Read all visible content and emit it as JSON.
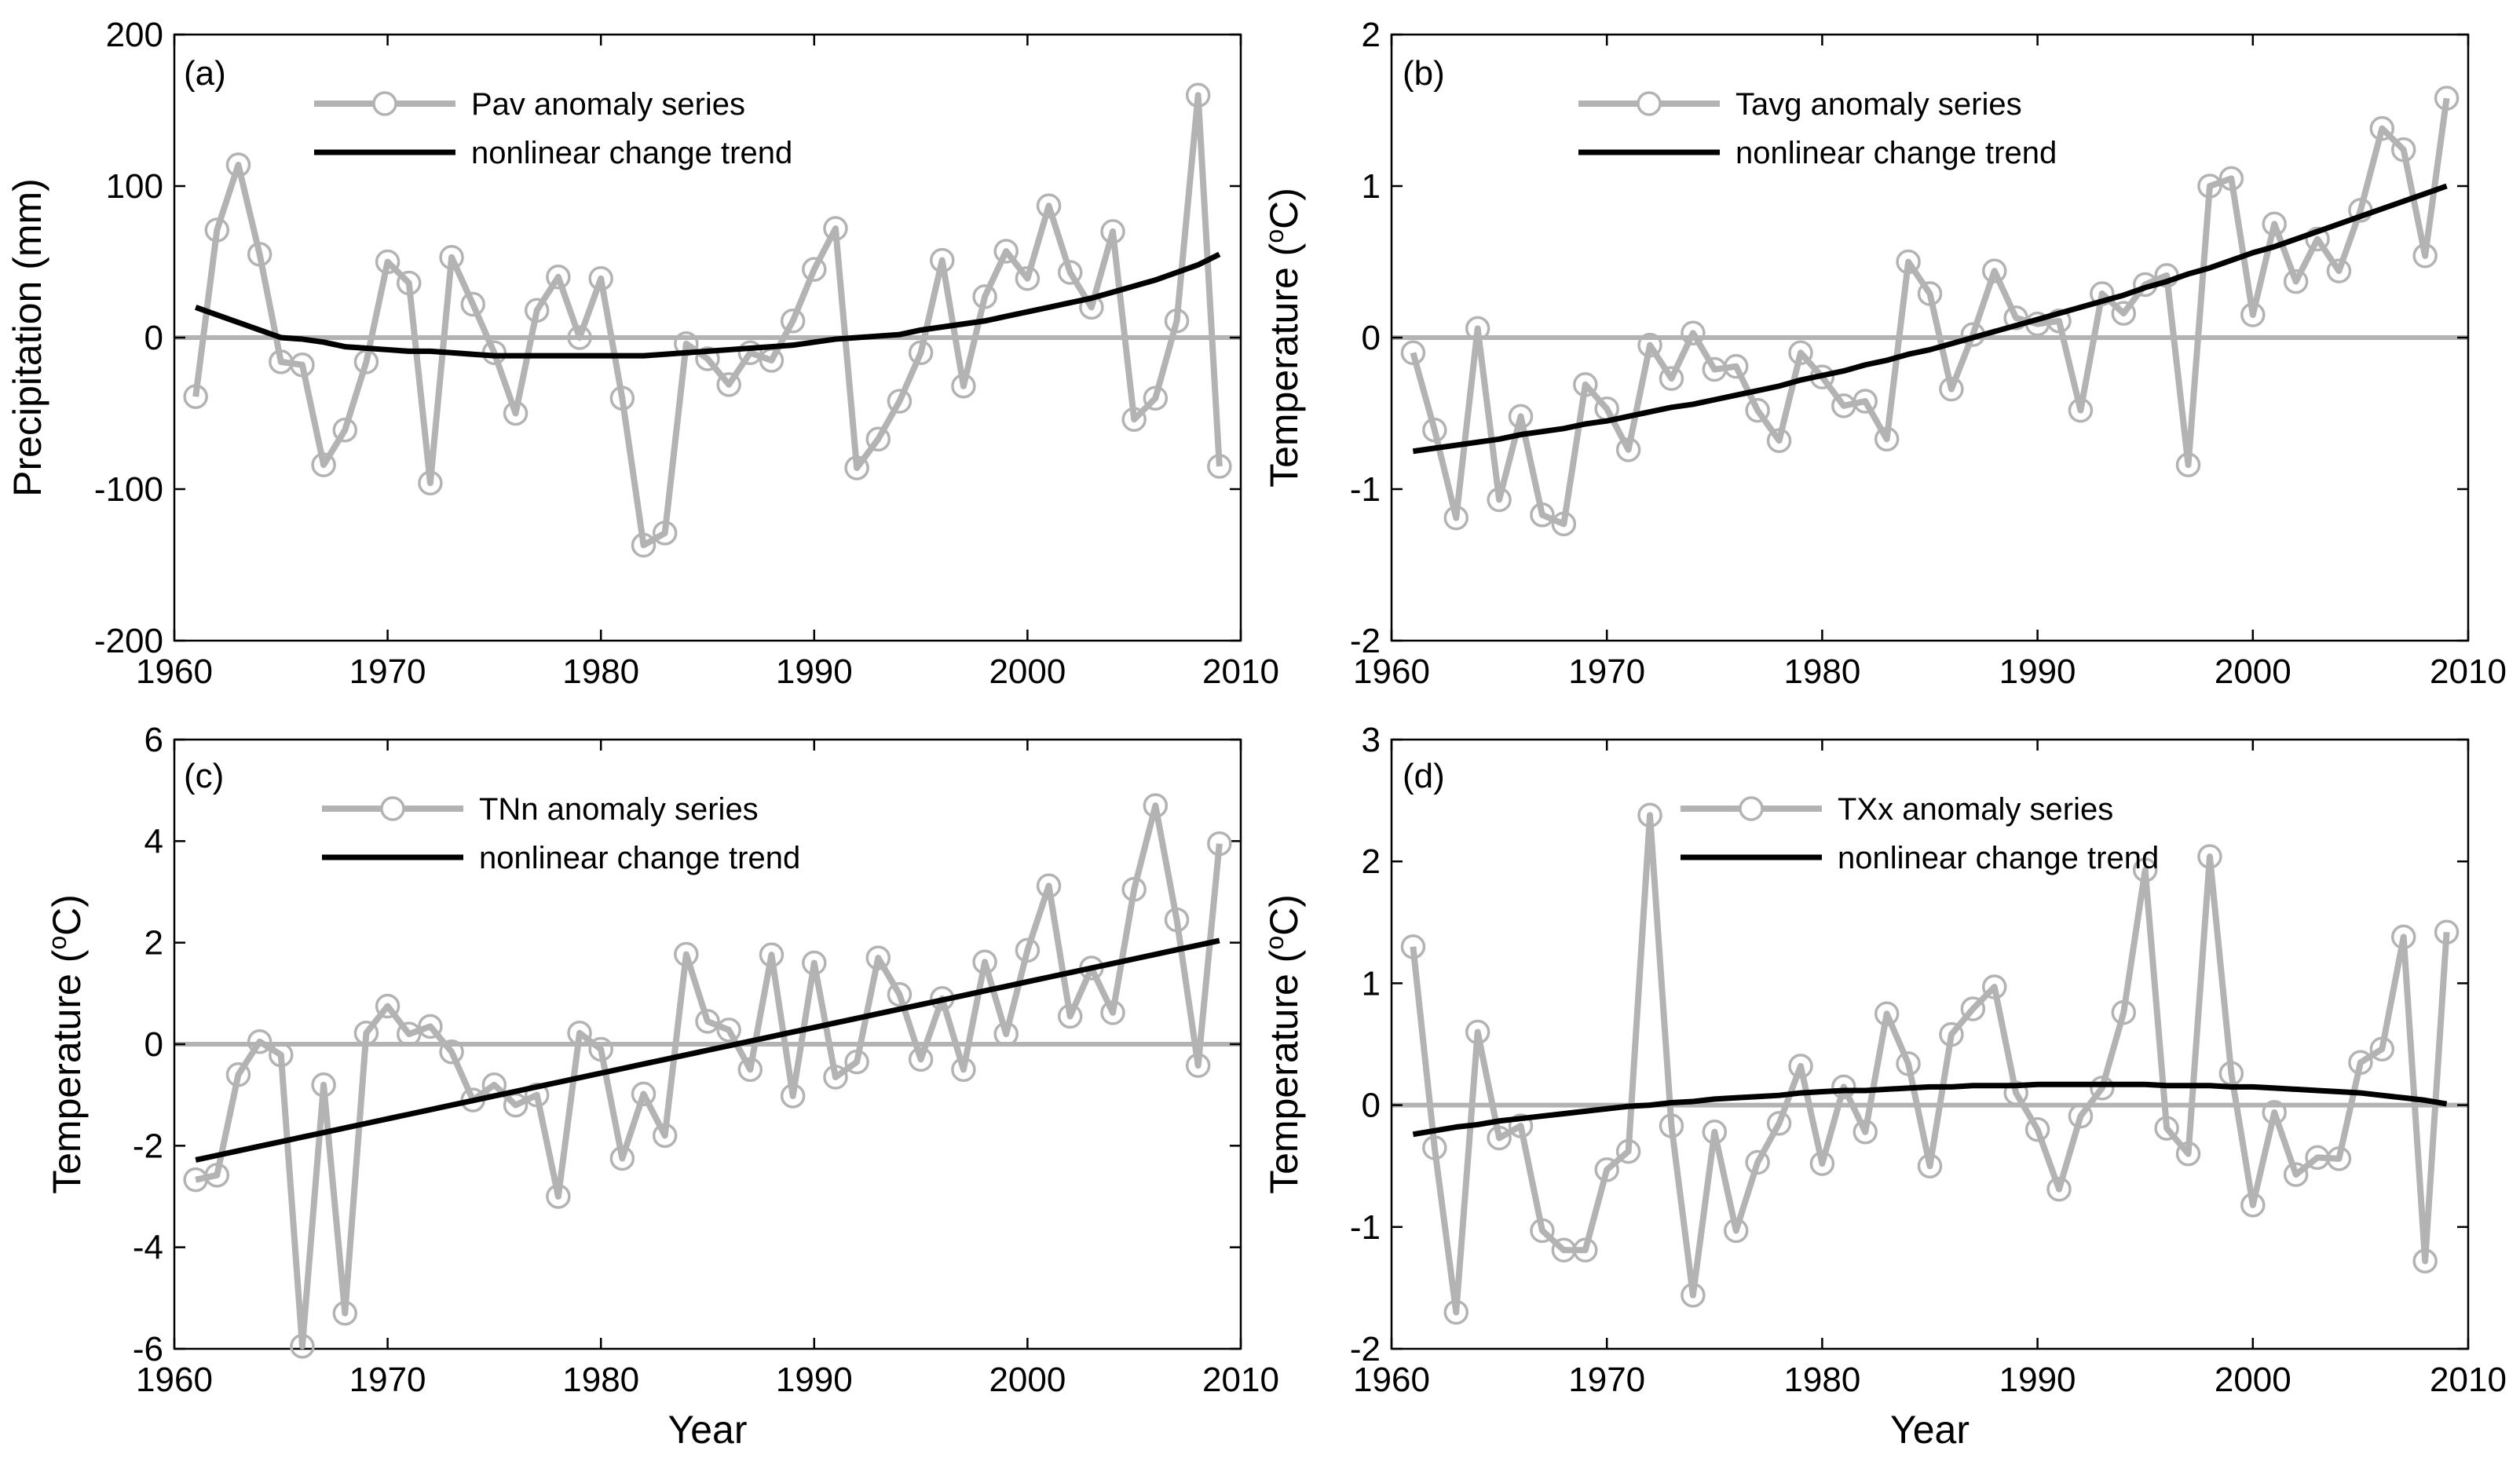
{
  "colors": {
    "series": "#b3b3b3",
    "trend": "#000000",
    "zero": "#b3b3b3",
    "axis": "#000000"
  },
  "chart_data": [
    {
      "panel": "(a)",
      "type": "line",
      "xlabel": "",
      "ylabel": "Precipitation (mm)",
      "xlim": [
        1960,
        2010
      ],
      "ylim": [
        -200,
        200
      ],
      "xticks": [
        "1960",
        "1970",
        "1980",
        "1990",
        "2000",
        "2010"
      ],
      "yticks": [
        "200",
        "100",
        "0",
        "-100",
        "-200"
      ],
      "ytick_values": [
        200,
        100,
        0,
        -100,
        -200
      ],
      "x": [
        1961,
        1962,
        1963,
        1964,
        1965,
        1966,
        1967,
        1968,
        1969,
        1970,
        1971,
        1972,
        1973,
        1974,
        1975,
        1976,
        1977,
        1978,
        1979,
        1980,
        1981,
        1982,
        1983,
        1984,
        1985,
        1986,
        1987,
        1988,
        1989,
        1990,
        1991,
        1992,
        1993,
        1994,
        1995,
        1996,
        1997,
        1998,
        1999,
        2000,
        2001,
        2002,
        2003,
        2004,
        2005,
        2006,
        2007,
        2008,
        2009
      ],
      "series": [
        {
          "name": "Pav anomaly series",
          "values": [
            -39,
            71,
            114,
            55,
            -16,
            -18,
            -84,
            -61,
            -16,
            50,
            36,
            -96,
            53,
            22,
            -10,
            -50,
            18,
            40,
            0,
            39,
            -40,
            -137,
            -129,
            -4,
            -14,
            -31,
            -10,
            -15,
            11,
            45,
            72,
            -86,
            -67,
            -42,
            -10,
            51,
            -32,
            27,
            57,
            39,
            87,
            43,
            20,
            70,
            -54,
            -40,
            11,
            160,
            -85
          ]
        },
        {
          "name": "nonlinear change trend",
          "values": [
            20,
            15,
            10,
            5,
            0,
            -1,
            -3,
            -6,
            -7,
            -8,
            -9,
            -9,
            -10,
            -11,
            -12,
            -12,
            -12,
            -12,
            -12,
            -12,
            -12,
            -12,
            -11,
            -10,
            -9,
            -8,
            -7,
            -6,
            -5,
            -3,
            -1,
            0,
            1,
            2,
            5,
            7,
            9,
            11,
            14,
            17,
            20,
            23,
            26,
            30,
            34,
            38,
            43,
            48,
            55
          ]
        }
      ],
      "legend": [
        "Pav anomaly series",
        "nonlinear change trend"
      ]
    },
    {
      "panel": "(b)",
      "type": "line",
      "xlabel": "",
      "ylabel_main": "Temperature (",
      "ylabel_sup": "o",
      "ylabel_end": "C)",
      "xlim": [
        1960,
        2010
      ],
      "ylim": [
        -2,
        2
      ],
      "xticks": [
        "1960",
        "1970",
        "1980",
        "1990",
        "2000",
        "2010"
      ],
      "yticks": [
        "2",
        "1",
        "0",
        "-1",
        "-2"
      ],
      "ytick_values": [
        2,
        1,
        0,
        -1,
        -2
      ],
      "x": [
        1961,
        1962,
        1963,
        1964,
        1965,
        1966,
        1967,
        1968,
        1969,
        1970,
        1971,
        1972,
        1973,
        1974,
        1975,
        1976,
        1977,
        1978,
        1979,
        1980,
        1981,
        1982,
        1983,
        1984,
        1985,
        1986,
        1987,
        1988,
        1989,
        1990,
        1991,
        1992,
        1993,
        1994,
        1995,
        1996,
        1997,
        1998,
        1999,
        2000,
        2001,
        2002,
        2003,
        2004,
        2005,
        2006,
        2007,
        2008,
        2009
      ],
      "series": [
        {
          "name": "Tavg anomaly series",
          "values": [
            -0.1,
            -0.61,
            -1.19,
            0.06,
            -1.07,
            -0.52,
            -1.17,
            -1.23,
            -0.31,
            -0.47,
            -0.74,
            -0.05,
            -0.27,
            0.03,
            -0.21,
            -0.19,
            -0.48,
            -0.68,
            -0.1,
            -0.26,
            -0.45,
            -0.42,
            -0.67,
            0.5,
            0.29,
            -0.34,
            0.02,
            0.44,
            0.13,
            0.09,
            0.11,
            -0.48,
            0.29,
            0.16,
            0.35,
            0.41,
            -0.84,
            1.0,
            1.05,
            0.15,
            0.75,
            0.37,
            0.65,
            0.44,
            0.84,
            1.38,
            1.24,
            0.54,
            1.58
          ]
        },
        {
          "name": "nonlinear change trend",
          "values": [
            -0.75,
            -0.73,
            -0.71,
            -0.69,
            -0.67,
            -0.64,
            -0.62,
            -0.6,
            -0.57,
            -0.55,
            -0.52,
            -0.49,
            -0.46,
            -0.44,
            -0.41,
            -0.38,
            -0.35,
            -0.32,
            -0.28,
            -0.25,
            -0.22,
            -0.18,
            -0.15,
            -0.11,
            -0.08,
            -0.04,
            0.0,
            0.04,
            0.08,
            0.12,
            0.16,
            0.2,
            0.24,
            0.28,
            0.33,
            0.37,
            0.42,
            0.46,
            0.51,
            0.56,
            0.6,
            0.65,
            0.7,
            0.75,
            0.8,
            0.85,
            0.9,
            0.95,
            1.0
          ]
        }
      ],
      "legend": [
        "Tavg anomaly series",
        "nonlinear change trend"
      ]
    },
    {
      "panel": "(c)",
      "type": "line",
      "xlabel": "Year",
      "ylabel_main": "Temperature (",
      "ylabel_sup": "o",
      "ylabel_end": "C)",
      "xlim": [
        1960,
        2010
      ],
      "ylim": [
        -6,
        6
      ],
      "xticks": [
        "1960",
        "1970",
        "1980",
        "1990",
        "2000",
        "2010"
      ],
      "yticks": [
        "6",
        "4",
        "2",
        "0",
        "-2",
        "-4",
        "-6"
      ],
      "ytick_values": [
        6,
        4,
        2,
        0,
        -2,
        -4,
        -6
      ],
      "x": [
        1961,
        1962,
        1963,
        1964,
        1965,
        1966,
        1967,
        1968,
        1969,
        1970,
        1971,
        1972,
        1973,
        1974,
        1975,
        1976,
        1977,
        1978,
        1979,
        1980,
        1981,
        1982,
        1983,
        1984,
        1985,
        1986,
        1987,
        1988,
        1989,
        1990,
        1991,
        1992,
        1993,
        1994,
        1995,
        1996,
        1997,
        1998,
        1999,
        2000,
        2001,
        2002,
        2003,
        2004,
        2005,
        2006,
        2007,
        2008,
        2009
      ],
      "series": [
        {
          "name": "TNn anomaly series",
          "values": [
            -2.67,
            -2.58,
            -0.6,
            0.05,
            -0.21,
            -5.95,
            -0.8,
            -5.3,
            0.22,
            0.75,
            0.2,
            0.35,
            -0.15,
            -1.1,
            -0.8,
            -1.2,
            -1.0,
            -3.0,
            0.22,
            -0.1,
            -2.25,
            -0.98,
            -1.8,
            1.77,
            0.45,
            0.28,
            -0.5,
            1.76,
            -1.02,
            1.6,
            -0.65,
            -0.35,
            1.7,
            0.98,
            -0.3,
            0.9,
            -0.5,
            1.62,
            0.2,
            1.85,
            3.12,
            0.55,
            1.5,
            0.62,
            3.05,
            4.7,
            2.45,
            -0.42,
            3.95
          ]
        },
        {
          "name": "nonlinear change trend",
          "values": [
            -2.28,
            -2.19,
            -2.1,
            -2.01,
            -1.92,
            -1.83,
            -1.74,
            -1.65,
            -1.56,
            -1.47,
            -1.38,
            -1.29,
            -1.2,
            -1.11,
            -1.02,
            -0.93,
            -0.84,
            -0.75,
            -0.66,
            -0.57,
            -0.48,
            -0.39,
            -0.3,
            -0.21,
            -0.12,
            -0.03,
            0.06,
            0.15,
            0.24,
            0.33,
            0.42,
            0.51,
            0.6,
            0.69,
            0.78,
            0.87,
            0.96,
            1.05,
            1.14,
            1.23,
            1.32,
            1.41,
            1.5,
            1.59,
            1.68,
            1.77,
            1.86,
            1.95,
            2.04
          ]
        }
      ],
      "legend": [
        "TNn anomaly series",
        "nonlinear change trend"
      ]
    },
    {
      "panel": "(d)",
      "type": "line",
      "xlabel": "Year",
      "ylabel_main": "Temperature (",
      "ylabel_sup": "o",
      "ylabel_end": "C)",
      "xlim": [
        1960,
        2010
      ],
      "ylim": [
        -2,
        3
      ],
      "xticks": [
        "1960",
        "1970",
        "1980",
        "1990",
        "2000",
        "2010"
      ],
      "yticks": [
        "3",
        "2",
        "1",
        "0",
        "-1",
        "-2"
      ],
      "ytick_values": [
        3,
        2,
        1,
        0,
        -1,
        -2
      ],
      "x": [
        1961,
        1962,
        1963,
        1964,
        1965,
        1966,
        1967,
        1968,
        1969,
        1970,
        1971,
        1972,
        1973,
        1974,
        1975,
        1976,
        1977,
        1978,
        1979,
        1980,
        1981,
        1982,
        1983,
        1984,
        1985,
        1986,
        1987,
        1988,
        1989,
        1990,
        1991,
        1992,
        1993,
        1994,
        1995,
        1996,
        1997,
        1998,
        1999,
        2000,
        2001,
        2002,
        2003,
        2004,
        2005,
        2006,
        2007,
        2008,
        2009
      ],
      "series": [
        {
          "name": "TXx anomaly series",
          "values": [
            1.3,
            -0.35,
            -1.7,
            0.6,
            -0.27,
            -0.17,
            -1.03,
            -1.19,
            -1.19,
            -0.53,
            -0.38,
            2.38,
            -0.17,
            -1.56,
            -0.22,
            -1.03,
            -0.47,
            -0.15,
            0.32,
            -0.48,
            0.15,
            -0.22,
            0.75,
            0.34,
            -0.5,
            0.58,
            0.79,
            0.97,
            0.1,
            -0.2,
            -0.69,
            -0.09,
            0.14,
            0.76,
            1.93,
            -0.19,
            -0.4,
            2.04,
            0.26,
            -0.82,
            -0.06,
            -0.57,
            -0.43,
            -0.44,
            0.35,
            0.46,
            1.38,
            -1.28,
            1.42
          ]
        },
        {
          "name": "nonlinear change trend",
          "values": [
            -0.24,
            -0.21,
            -0.18,
            -0.16,
            -0.13,
            -0.11,
            -0.09,
            -0.07,
            -0.05,
            -0.03,
            -0.01,
            0.0,
            0.02,
            0.03,
            0.05,
            0.06,
            0.07,
            0.08,
            0.1,
            0.11,
            0.12,
            0.12,
            0.13,
            0.14,
            0.15,
            0.15,
            0.16,
            0.16,
            0.16,
            0.17,
            0.17,
            0.17,
            0.17,
            0.17,
            0.17,
            0.16,
            0.16,
            0.16,
            0.15,
            0.15,
            0.14,
            0.13,
            0.12,
            0.11,
            0.1,
            0.08,
            0.06,
            0.04,
            0.01
          ]
        }
      ],
      "legend": [
        "TXx anomaly series",
        "nonlinear change trend"
      ]
    }
  ]
}
